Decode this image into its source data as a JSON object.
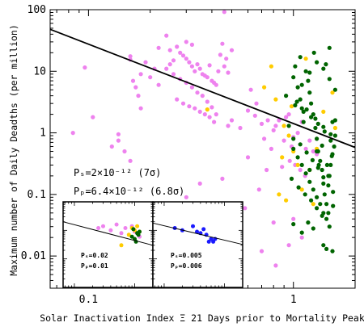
{
  "chart_data": {
    "type": "scatter",
    "xlabel": "Solar Inactivation Index Ξ 21 Days prior to Mortality Peak",
    "ylabel": "Maximum number of Daily Deadths (per million)",
    "xscale": "log",
    "yscale": "log",
    "xlim": [
      0.065,
      2.0
    ],
    "ylim": [
      0.003,
      100
    ],
    "x_ticks": [
      0.1,
      1
    ],
    "x_tick_labels": [
      "0.1",
      "1"
    ],
    "y_ticks": [
      0.01,
      0.1,
      1,
      10,
      100
    ],
    "y_tick_labels": [
      "0.01",
      "0.1",
      "1",
      "10",
      "100"
    ],
    "grid": false,
    "legend": "none",
    "colors": {
      "violet": "#ee82ee",
      "gold": "#ffcc00",
      "green": "#006400",
      "blue": "#1a1aff",
      "fit": "#000000"
    },
    "fit_line": {
      "x": [
        0.065,
        2.0
      ],
      "y": [
        48,
        0.58
      ]
    },
    "annotations": {
      "ps": "Pₛ=2×10⁻¹² (7σ)",
      "pp": "Pₚ=6.4×10⁻¹² (6.8σ)"
    },
    "series": [
      {
        "color": "violet",
        "x": [
          0.084,
          0.096,
          0.105,
          0.13,
          0.14,
          0.14,
          0.15,
          0.16,
          0.16,
          0.17,
          0.165,
          0.175,
          0.16,
          0.18,
          0.18,
          0.19,
          0.2,
          0.21,
          0.22,
          0.24,
          0.25,
          0.26,
          0.27,
          0.28,
          0.29,
          0.3,
          0.31,
          0.32,
          0.33,
          0.34,
          0.35,
          0.36,
          0.37,
          0.38,
          0.39,
          0.4,
          0.41,
          0.42,
          0.43,
          0.45,
          0.46,
          0.47,
          0.48,
          0.5,
          0.24,
          0.26,
          0.28,
          0.3,
          0.32,
          0.34,
          0.36,
          0.27,
          0.29,
          0.31,
          0.33,
          0.35,
          0.37,
          0.39,
          0.41,
          0.25,
          0.22,
          0.3,
          0.32,
          0.44,
          0.46,
          0.48,
          0.38,
          0.4,
          0.42,
          0.5,
          0.55,
          0.6,
          0.65,
          0.7,
          0.75,
          0.8,
          0.62,
          0.66,
          0.72,
          0.78,
          0.6,
          0.68,
          0.74,
          0.82,
          0.85,
          0.88,
          0.9,
          0.92,
          0.95,
          0.98,
          1.0,
          1.05,
          1.1,
          1.15,
          1.2,
          1.25,
          1.3,
          0.96,
          1.02,
          1.08,
          1.14,
          0.58,
          0.7,
          0.8,
          0.35,
          0.45,
          0.55,
          0.3,
          0.82,
          1.0,
          1.1,
          0.95
        ],
        "y": [
          1.0,
          11.5,
          1.8,
          0.6,
          0.95,
          0.75,
          0.5,
          17.5,
          15.5,
          5.5,
          7.0,
          4.0,
          0.35,
          9.0,
          2.5,
          14.0,
          8.0,
          11.0,
          24.0,
          38.0,
          22.0,
          15.0,
          25.0,
          20.0,
          18.0,
          16.0,
          14.0,
          12.0,
          10.0,
          13.0,
          11.0,
          9.0,
          8.5,
          8.0,
          12.5,
          7.0,
          6.5,
          6.0,
          10.0,
          28.0,
          12.0,
          16.0,
          9.5,
          22.0,
          11.0,
          9.0,
          7.5,
          6.5,
          5.5,
          4.5,
          4.0,
          3.5,
          3.0,
          2.7,
          2.5,
          2.2,
          2.0,
          1.8,
          1.5,
          13.0,
          6.0,
          30.0,
          27.0,
          18.5,
          92.0,
          1.3,
          3.2,
          2.6,
          2.0,
          1.6,
          1.2,
          2.3,
          1.9,
          1.4,
          1.6,
          1.1,
          5.0,
          3.0,
          0.8,
          0.55,
          0.4,
          0.12,
          0.25,
          1.3,
          1.6,
          0.28,
          0.75,
          1.8,
          2.0,
          0.6,
          0.85,
          1.0,
          1.5,
          0.55,
          0.75,
          0.5,
          0.45,
          0.35,
          0.3,
          0.25,
          0.2,
          0.06,
          0.012,
          0.035,
          0.15,
          0.18,
          0.07,
          0.09,
          0.007,
          0.04,
          0.02,
          0.015
        ]
      },
      {
        "color": "gold",
        "x": [
          0.38,
          0.72,
          0.82,
          0.9,
          0.95,
          1.0,
          1.05,
          1.1,
          0.85,
          0.92,
          1.15,
          1.2,
          1.3,
          1.55,
          0.78,
          0.88,
          0.98,
          1.25,
          1.4,
          1.6,
          0.3,
          0.33,
          0.36
        ],
        "y": [
          2.4,
          5.5,
          3.5,
          1.3,
          0.9,
          0.5,
          0.3,
          0.12,
          0.1,
          0.08,
          16.0,
          0.25,
          0.55,
          4.5,
          12.0,
          0.4,
          2.7,
          0.07,
          2.2,
          1.2,
          0.05,
          0.035,
          0.06
        ]
      },
      {
        "color": "green",
        "x": [
          0.95,
          1.0,
          1.02,
          1.05,
          1.08,
          1.1,
          1.12,
          1.15,
          1.18,
          1.2,
          1.22,
          1.25,
          1.28,
          1.3,
          1.32,
          1.35,
          1.38,
          1.4,
          1.42,
          1.45,
          1.48,
          1.5,
          1.52,
          1.55,
          1.58,
          1.6,
          1.0,
          1.05,
          1.1,
          1.15,
          1.2,
          1.25,
          1.3,
          1.35,
          1.4,
          1.45,
          1.5,
          1.55,
          1.1,
          1.2,
          1.3,
          1.4,
          1.5,
          1.6,
          1.0,
          1.08,
          1.16,
          1.24,
          1.32,
          1.4,
          1.48,
          1.56,
          1.02,
          1.12,
          1.22,
          1.32,
          1.42,
          1.52,
          0.98,
          1.06,
          1.14,
          1.22,
          1.3,
          1.38,
          1.46,
          1.54,
          0.92,
          1.04,
          1.16,
          1.28,
          1.4,
          1.52,
          1.1,
          1.25,
          1.4,
          1.55,
          1.18,
          1.33,
          1.48,
          1.08,
          1.26,
          1.44,
          1.6,
          1.2,
          1.38,
          1.56,
          1.0,
          1.3,
          1.5,
          1.45
        ],
        "y": [
          1.3,
          8.0,
          12.0,
          5.5,
          3.5,
          2.5,
          1.5,
          10.0,
          7.0,
          4.5,
          3.0,
          2.0,
          1.2,
          0.8,
          0.5,
          0.35,
          0.25,
          0.15,
          0.1,
          0.07,
          0.05,
          0.2,
          0.3,
          0.45,
          0.6,
          0.9,
          0.55,
          0.4,
          0.3,
          0.22,
          0.16,
          0.12,
          0.09,
          0.07,
          0.05,
          0.04,
          0.03,
          1.5,
          6.0,
          9.5,
          14.0,
          11.0,
          7.5,
          5.0,
          0.8,
          0.65,
          0.48,
          0.36,
          0.27,
          0.19,
          0.14,
          0.11,
          2.8,
          2.2,
          1.8,
          1.4,
          1.05,
          0.75,
          0.18,
          0.13,
          0.1,
          0.08,
          0.06,
          0.045,
          0.3,
          0.42,
          4.0,
          3.2,
          2.4,
          1.7,
          1.25,
          0.95,
          0.024,
          0.028,
          0.015,
          0.012,
          0.035,
          0.3,
          0.2,
          17.0,
          20.0,
          13.0,
          1.6,
          0.25,
          0.62,
          0.065,
          0.033,
          0.5,
          24.0,
          0.013
        ]
      }
    ],
    "insets": [
      {
        "xlim": [
          0.065,
          2.0
        ],
        "ylim": [
          0.1,
          100
        ],
        "fit_line": {
          "x": [
            0.065,
            2.0
          ],
          "y": [
            20,
            3.0
          ]
        },
        "annotations": {
          "ps": "Pₛ=0.02",
          "pp": "Pₚ=0.01"
        },
        "series": [
          {
            "color": "violet",
            "x": [
              0.25,
              0.3,
              0.4,
              0.5,
              0.6,
              0.7,
              0.9,
              1.0,
              1.2
            ],
            "y": [
              12,
              14,
              10,
              16,
              8,
              12,
              14,
              9,
              6
            ]
          },
          {
            "color": "gold",
            "x": [
              0.6,
              0.8,
              1.0,
              1.2,
              0.9,
              1.1
            ],
            "y": [
              3.0,
              7.0,
              10.0,
              9.0,
              12.0,
              14.0
            ]
          },
          {
            "color": "green",
            "x": [
              0.9,
              1.0,
              1.1,
              1.2,
              0.95,
              1.05,
              1.15
            ],
            "y": [
              6.0,
              5.0,
              8.0,
              9.0,
              11.0,
              4.0,
              7.0
            ]
          }
        ]
      },
      {
        "xlim": [
          0.065,
          2.0
        ],
        "ylim": [
          0.1,
          100
        ],
        "fit_line": {
          "x": [
            0.065,
            2.0
          ],
          "y": [
            18,
            3.2
          ]
        },
        "annotations": {
          "ps": "Pₛ=0.005",
          "pp": "Pₚ=0.006"
        },
        "series": [
          {
            "color": "blue",
            "x": [
              0.15,
              0.2,
              0.3,
              0.35,
              0.45,
              0.4,
              0.5,
              0.6,
              0.7,
              0.55,
              0.65
            ],
            "y": [
              12,
              10,
              14,
              9,
              11,
              8,
              7,
              5,
              5,
              4,
              4
            ]
          }
        ]
      }
    ]
  }
}
